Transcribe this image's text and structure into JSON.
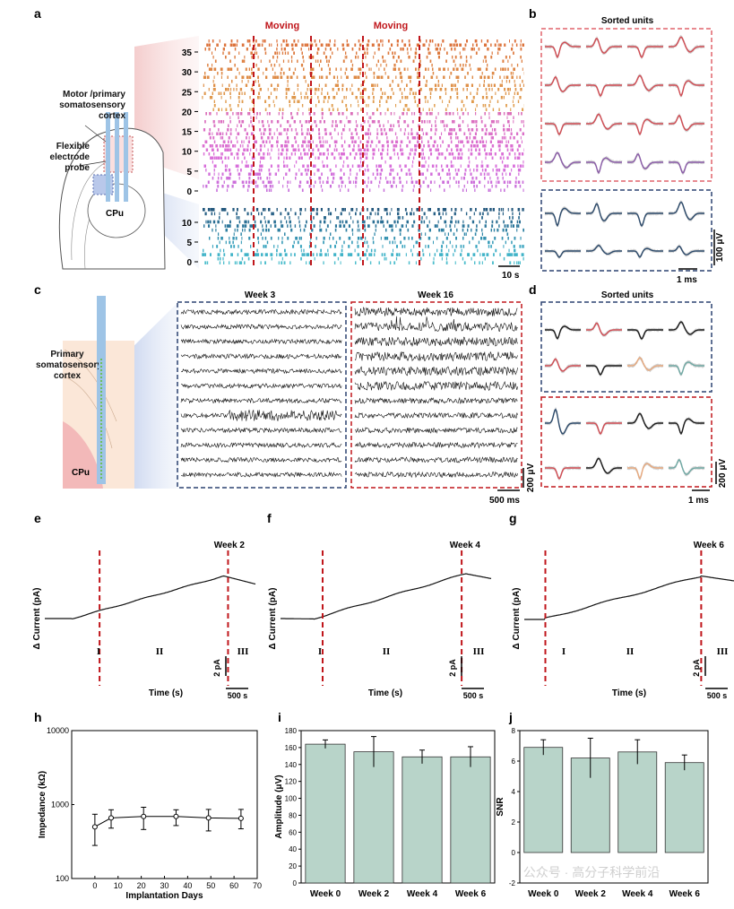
{
  "panels": {
    "a": "a",
    "b": "b",
    "c": "c",
    "d": "d",
    "e": "e",
    "f": "f",
    "g": "g",
    "h": "h",
    "i": "i",
    "j": "j"
  },
  "panel_a": {
    "moving_label": "Moving",
    "ticks_top": [
      "35",
      "30",
      "25",
      "20",
      "15",
      "10",
      "5",
      "0"
    ],
    "ticks_bottom": [
      "10",
      "5",
      "0"
    ],
    "scale": "10 s",
    "brain_labels": {
      "motor": "Motor /primary somatosensory cortex",
      "probe": "Flexible electrode probe",
      "cpu": "CPu"
    }
  },
  "panel_b": {
    "title": "Sorted units",
    "scale_v": "100 μV",
    "scale_t": "1 ms"
  },
  "panel_c": {
    "week3": "Week 3",
    "week16": "Week 16",
    "scale_t": "500 ms",
    "scale_v": "200 μV",
    "brain_label": "Primary somatosensory cortex",
    "cpu": "CPu"
  },
  "panel_d": {
    "title": "Sorted units",
    "scale_v": "200 μV",
    "scale_t": "1 ms"
  },
  "current_plots": [
    {
      "key": "e",
      "week": "Week 2",
      "ylabel": "Δ Current (pA)",
      "xlabel": "Time (s)",
      "scale_pa": "2 pA",
      "scale_s": "500 s",
      "phases": [
        "I",
        "II",
        "III"
      ]
    },
    {
      "key": "f",
      "week": "Week 4",
      "ylabel": "Δ Current (pA)",
      "xlabel": "Time (s)",
      "scale_pa": "2 pA",
      "scale_s": "500 s",
      "phases": [
        "I",
        "II",
        "III"
      ]
    },
    {
      "key": "g",
      "week": "Week 6",
      "ylabel": "Δ Current (pA)",
      "xlabel": "Time (s)",
      "scale_pa": "2 pA",
      "scale_s": "500 s",
      "phases": [
        "I",
        "II",
        "III"
      ]
    }
  ],
  "chart_data": [
    {
      "type": "line",
      "key": "h",
      "xlabel": "Implantation Days",
      "ylabel": "Impedance (kΩ)",
      "log_y": true,
      "xlim": [
        -10,
        70
      ],
      "ylim": [
        100,
        10000
      ],
      "x_ticks": [
        "0",
        "10",
        "20",
        "30",
        "40",
        "50",
        "60",
        "70"
      ],
      "y_ticks": [
        "100",
        "1000",
        "10000"
      ],
      "x": [
        0,
        7,
        21,
        35,
        49,
        63
      ],
      "y": [
        500,
        660,
        690,
        690,
        660,
        650
      ],
      "err_low": [
        280,
        480,
        460,
        520,
        440,
        470
      ],
      "err_high": [
        740,
        850,
        920,
        850,
        860,
        860
      ]
    },
    {
      "type": "bar",
      "key": "i",
      "categories": [
        "Week 0",
        "Week 2",
        "Week 4",
        "Week 6"
      ],
      "values": [
        164,
        155,
        149,
        149
      ],
      "errors": [
        5,
        18,
        8,
        12
      ],
      "ylabel": "Amplitude (μV)",
      "ylim": [
        0,
        180
      ],
      "y_ticks": [
        "0",
        "20",
        "40",
        "60",
        "80",
        "100",
        "120",
        "140",
        "160",
        "180"
      ],
      "color": "#b8d4c9"
    },
    {
      "type": "bar",
      "key": "j",
      "categories": [
        "Week 0",
        "Week 2",
        "Week 4",
        "Week 6"
      ],
      "values": [
        6.9,
        6.2,
        6.6,
        5.9
      ],
      "errors": [
        0.5,
        1.3,
        0.8,
        0.5
      ],
      "ylabel": "SNR",
      "ylim": [
        -2,
        8
      ],
      "y_ticks": [
        "-2",
        "0",
        "2",
        "4",
        "6",
        "8"
      ],
      "color": "#b8d4c9"
    }
  ],
  "watermark": "公众号 · 高分子科学前沿"
}
